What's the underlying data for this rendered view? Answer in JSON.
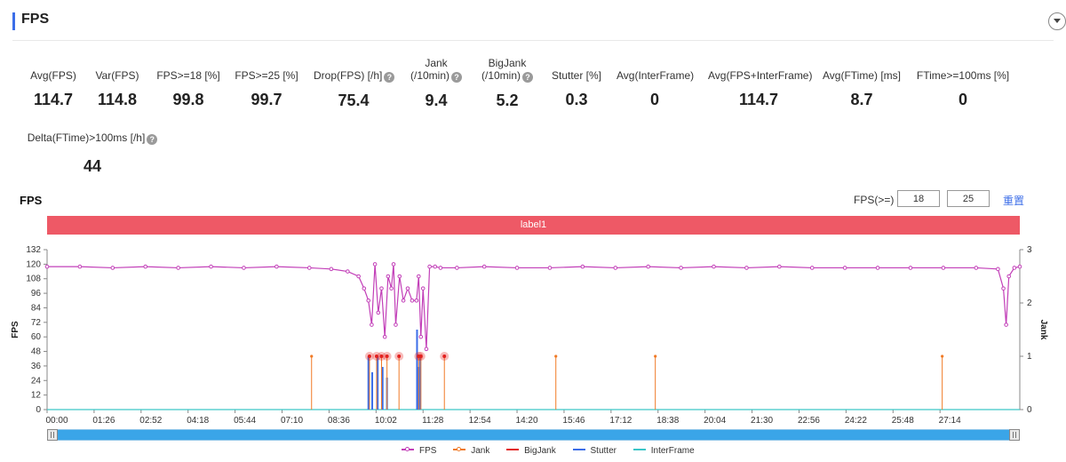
{
  "header": {
    "title": "FPS"
  },
  "metrics": [
    {
      "label": "Avg(FPS)",
      "value": "114.7"
    },
    {
      "label": "Var(FPS)",
      "value": "114.8"
    },
    {
      "label": "FPS>=18 [%]",
      "value": "99.8"
    },
    {
      "label": "FPS>=25 [%]",
      "value": "99.7"
    },
    {
      "label": "Drop(FPS) [/h]",
      "value": "75.4",
      "help": true
    },
    {
      "label": "Jank",
      "label2": "(/10min)",
      "value": "9.4",
      "help": true
    },
    {
      "label": "BigJank",
      "label2": "(/10min)",
      "value": "5.2",
      "help": true
    },
    {
      "label": "Stutter [%]",
      "value": "0.3"
    },
    {
      "label": "Avg(InterFrame)",
      "value": "0"
    },
    {
      "label": "Avg(FPS+InterFrame)",
      "value": "114.7"
    },
    {
      "label": "Avg(FTime) [ms]",
      "value": "8.7"
    },
    {
      "label": "FTime>=100ms [%]",
      "value": "0"
    },
    {
      "label": "Delta(FTime)>100ms [/h]",
      "value": "44",
      "help": true
    }
  ],
  "chart_header": {
    "title": "FPS",
    "filter_label": "FPS(>=)",
    "threshold1": "18",
    "threshold2": "25",
    "reset_label": "重置"
  },
  "label_band": "label1",
  "colors": {
    "fps": "#c23fb8",
    "jank": "#f07a26",
    "bigjank": "#e3211f",
    "stutter": "#3c6ee8",
    "interframe": "#3cc6c8",
    "band": "#ee5966"
  },
  "chart_data": {
    "type": "line",
    "title": "FPS",
    "ylabel": "FPS",
    "y2label": "Jank",
    "ylim": [
      0,
      132
    ],
    "y2lim": [
      0,
      3
    ],
    "xlim_seconds": [
      0,
      1780
    ],
    "y_ticks": [
      0,
      12,
      24,
      36,
      48,
      60,
      72,
      84,
      96,
      108,
      120,
      132
    ],
    "y2_ticks": [
      0,
      1,
      2,
      3
    ],
    "x_ticks": [
      "00:00",
      "01:26",
      "02:52",
      "04:18",
      "05:44",
      "07:10",
      "08:36",
      "10:02",
      "11:28",
      "12:54",
      "14:20",
      "15:46",
      "17:12",
      "18:38",
      "20:04",
      "21:30",
      "22:56",
      "24:22",
      "25:48",
      "27:14"
    ],
    "x_tick_seconds": [
      0,
      86,
      172,
      258,
      344,
      430,
      516,
      602,
      688,
      774,
      860,
      946,
      1032,
      1118,
      1204,
      1290,
      1376,
      1462,
      1548,
      1634
    ],
    "legend": [
      "FPS",
      "Jank",
      "BigJank",
      "Stutter",
      "InterFrame"
    ],
    "series": [
      {
        "name": "FPS",
        "axis": "left",
        "x": [
          0,
          60,
          120,
          180,
          240,
          300,
          360,
          420,
          480,
          520,
          550,
          570,
          580,
          588,
          594,
          600,
          606,
          612,
          618,
          624,
          630,
          634,
          638,
          645,
          652,
          660,
          668,
          676,
          680,
          684,
          688,
          694,
          700,
          710,
          720,
          750,
          800,
          860,
          920,
          980,
          1040,
          1100,
          1160,
          1220,
          1280,
          1340,
          1400,
          1460,
          1520,
          1580,
          1640,
          1700,
          1740,
          1750,
          1755,
          1760,
          1770,
          1780
        ],
        "values": [
          118,
          118,
          117,
          118,
          117,
          118,
          117,
          118,
          117,
          116,
          114,
          110,
          100,
          90,
          70,
          120,
          80,
          100,
          60,
          110,
          100,
          120,
          70,
          110,
          90,
          100,
          90,
          90,
          110,
          60,
          100,
          50,
          118,
          118,
          117,
          117,
          118,
          117,
          117,
          118,
          117,
          118,
          117,
          118,
          117,
          118,
          117,
          117,
          117,
          117,
          117,
          117,
          116,
          100,
          70,
          110,
          117,
          118
        ]
      },
      {
        "name": "Jank",
        "axis": "right",
        "x": [
          484,
          590,
          603,
          612,
          622,
          644,
          680,
          684,
          727,
          931,
          1113,
          1638
        ],
        "values": [
          1,
          1,
          1,
          1,
          1,
          1,
          1,
          1,
          1,
          1,
          1,
          1
        ]
      },
      {
        "name": "BigJank",
        "axis": "right",
        "x": [
          590,
          603,
          612,
          622,
          644,
          680,
          684,
          727
        ],
        "values": [
          1,
          1,
          1,
          1,
          1,
          1,
          1,
          1
        ]
      },
      {
        "name": "Stutter",
        "axis": "right",
        "x": [
          588,
          595,
          605,
          614,
          622,
          677,
          680,
          683
        ],
        "values": [
          1.0,
          0.7,
          1.0,
          0.8,
          0.6,
          1.5,
          0.8,
          1.0
        ]
      },
      {
        "name": "InterFrame",
        "axis": "right",
        "x": [
          0,
          1780
        ],
        "values": [
          0,
          0
        ]
      }
    ]
  }
}
